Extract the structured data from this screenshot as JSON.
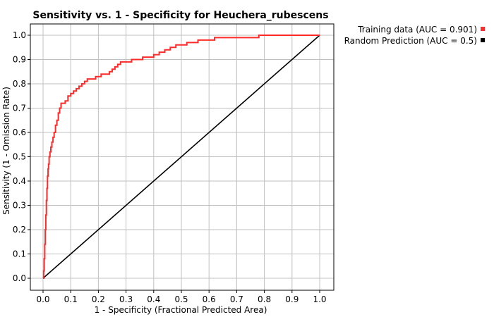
{
  "chart_data": {
    "type": "line",
    "title": "Sensitivity vs. 1 - Specificity for Heuchera_rubescens",
    "xlabel": "1 - Specificity  (Fractional Predicted Area)",
    "ylabel": "Sensitivity  (1 - Omission Rate)",
    "xlim": [
      0,
      1
    ],
    "ylim": [
      0,
      1
    ],
    "xticks": [
      "0.0",
      "0.1",
      "0.2",
      "0.3",
      "0.4",
      "0.5",
      "0.6",
      "0.7",
      "0.8",
      "0.9",
      "1.0"
    ],
    "yticks": [
      "0.0",
      "0.1",
      "0.2",
      "0.3",
      "0.4",
      "0.5",
      "0.6",
      "0.7",
      "0.8",
      "0.9",
      "1.0"
    ],
    "grid": true,
    "legend_position": "top-right, outside plot",
    "series": [
      {
        "name": "Training data (AUC = 0.901)",
        "color": "#ff2a2a",
        "x": [
          0.0,
          0.002,
          0.004,
          0.006,
          0.008,
          0.01,
          0.012,
          0.014,
          0.016,
          0.018,
          0.02,
          0.022,
          0.025,
          0.028,
          0.032,
          0.036,
          0.04,
          0.045,
          0.05,
          0.055,
          0.06,
          0.065,
          0.07,
          0.08,
          0.09,
          0.1,
          0.11,
          0.12,
          0.13,
          0.14,
          0.15,
          0.16,
          0.17,
          0.18,
          0.19,
          0.2,
          0.21,
          0.22,
          0.24,
          0.25,
          0.26,
          0.27,
          0.28,
          0.3,
          0.32,
          0.34,
          0.36,
          0.38,
          0.4,
          0.42,
          0.44,
          0.46,
          0.48,
          0.5,
          0.52,
          0.54,
          0.56,
          0.58,
          0.62,
          0.66,
          0.7,
          0.78,
          0.85,
          0.9,
          0.95,
          1.0
        ],
        "y": [
          0.0,
          0.03,
          0.08,
          0.14,
          0.2,
          0.26,
          0.32,
          0.37,
          0.42,
          0.45,
          0.47,
          0.5,
          0.52,
          0.54,
          0.56,
          0.58,
          0.6,
          0.63,
          0.65,
          0.68,
          0.7,
          0.72,
          0.72,
          0.73,
          0.75,
          0.76,
          0.77,
          0.78,
          0.79,
          0.8,
          0.81,
          0.82,
          0.82,
          0.82,
          0.83,
          0.83,
          0.84,
          0.84,
          0.85,
          0.86,
          0.87,
          0.88,
          0.89,
          0.89,
          0.9,
          0.9,
          0.91,
          0.91,
          0.92,
          0.93,
          0.94,
          0.95,
          0.96,
          0.96,
          0.97,
          0.97,
          0.98,
          0.98,
          0.99,
          0.99,
          0.99,
          1.0,
          1.0,
          1.0,
          1.0,
          1.0
        ]
      },
      {
        "name": "Random Prediction (AUC = 0.5)",
        "color": "#000000",
        "x": [
          0.0,
          1.0
        ],
        "y": [
          0.0,
          1.0
        ]
      }
    ]
  }
}
